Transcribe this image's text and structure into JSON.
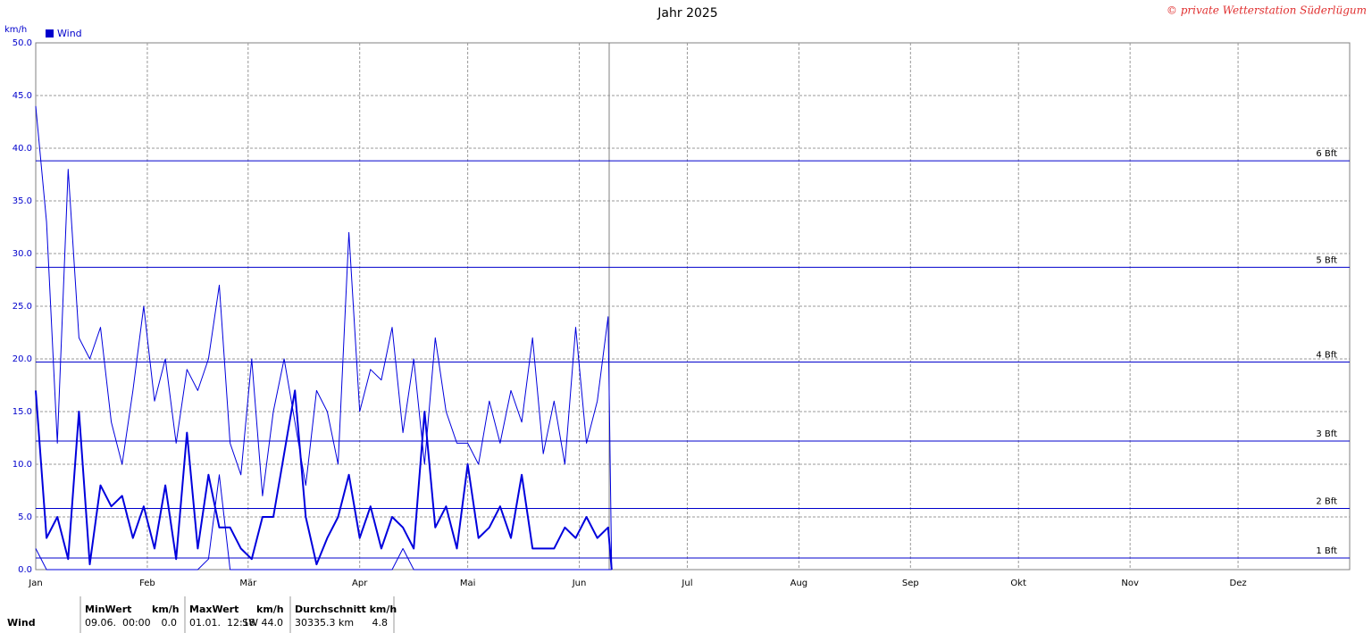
{
  "chart_data": {
    "type": "line",
    "title": "Jahr 2025",
    "credit": "© private Wetterstation Süderlügum",
    "y_label": "km/h",
    "xlim": [
      0,
      365
    ],
    "xticks": [
      {
        "value": 0,
        "label": "Jan"
      },
      {
        "value": 31,
        "label": "Feb"
      },
      {
        "value": 59,
        "label": "Mär"
      },
      {
        "value": 90,
        "label": "Apr"
      },
      {
        "value": 120,
        "label": "Mai"
      },
      {
        "value": 151,
        "label": "Jun"
      },
      {
        "value": 181,
        "label": "Jul"
      },
      {
        "value": 212,
        "label": "Aug"
      },
      {
        "value": 243,
        "label": "Sep"
      },
      {
        "value": 273,
        "label": "Okt"
      },
      {
        "value": 304,
        "label": "Nov"
      },
      {
        "value": 334,
        "label": "Dez"
      }
    ],
    "ylim": [
      0,
      50
    ],
    "yticks": [
      {
        "value": 0,
        "label": "0.0"
      },
      {
        "value": 5,
        "label": "5.0"
      },
      {
        "value": 10,
        "label": "10.0"
      },
      {
        "value": 15,
        "label": "15.0"
      },
      {
        "value": 20,
        "label": "20.0"
      },
      {
        "value": 25,
        "label": "25.0"
      },
      {
        "value": 30,
        "label": "30.0"
      },
      {
        "value": 35,
        "label": "35.0"
      },
      {
        "value": 40,
        "label": "40.0"
      },
      {
        "value": 45,
        "label": "45.0"
      },
      {
        "value": 50,
        "label": "50.0"
      }
    ],
    "grid": true,
    "reference_lines": [
      {
        "value": 1.1,
        "label": "1 Bft"
      },
      {
        "value": 5.8,
        "label": "2 Bft"
      },
      {
        "value": 12.2,
        "label": "3 Bft"
      },
      {
        "value": 19.7,
        "label": "4 Bft"
      },
      {
        "value": 28.7,
        "label": "5 Bft"
      },
      {
        "value": 38.8,
        "label": "6 Bft"
      }
    ],
    "x": [
      0,
      3,
      6,
      9,
      12,
      15,
      18,
      21,
      24,
      27,
      30,
      33,
      36,
      39,
      42,
      45,
      48,
      51,
      54,
      57,
      60,
      63,
      66,
      69,
      72,
      75,
      78,
      81,
      84,
      87,
      90,
      93,
      96,
      99,
      102,
      105,
      108,
      111,
      114,
      117,
      120,
      123,
      126,
      129,
      132,
      135,
      138,
      141,
      144,
      147,
      150,
      153,
      156,
      159,
      160
    ],
    "series": [
      {
        "name": "Wind",
        "color": "#0000dd",
        "width": 2,
        "values": [
          17,
          3,
          5,
          1,
          15,
          0.5,
          8,
          6,
          7,
          3,
          6,
          2,
          8,
          1,
          13,
          2,
          9,
          4,
          4,
          2,
          1,
          5,
          5,
          11,
          17,
          5,
          0.5,
          3,
          5,
          9,
          3,
          6,
          2,
          5,
          4,
          2,
          15,
          4,
          6,
          2,
          10,
          3,
          4,
          6,
          3,
          9,
          2,
          2,
          2,
          4,
          3,
          5,
          3,
          4,
          0
        ]
      },
      {
        "color": "#0000dd",
        "width": 1,
        "values": [
          44,
          33,
          12,
          38,
          22,
          20,
          23,
          14,
          10,
          17,
          25,
          16,
          20,
          12,
          19,
          17,
          20,
          27,
          12,
          9,
          20,
          7,
          15,
          20,
          14,
          8,
          17,
          15,
          10,
          32,
          15,
          19,
          18,
          23,
          13,
          20,
          10,
          22,
          15,
          12,
          12,
          10,
          16,
          12,
          17,
          14,
          22,
          11,
          16,
          10,
          23,
          12,
          16,
          24,
          0
        ]
      },
      {
        "color": "#0000dd",
        "width": 1,
        "values": [
          2,
          0,
          0,
          0,
          0,
          0,
          0,
          0,
          0,
          0,
          0,
          0,
          0,
          0,
          0,
          0,
          1,
          9,
          0,
          0,
          0,
          0,
          0,
          0,
          0,
          0,
          0,
          0,
          0,
          0,
          0,
          0,
          0,
          0,
          2,
          0,
          0,
          0,
          0,
          0,
          0,
          0,
          0,
          0,
          0,
          0,
          0,
          0,
          0,
          0,
          0,
          0,
          0,
          0,
          0
        ]
      }
    ],
    "legend": "top-left",
    "stats": {
      "row_label": "Wind",
      "min": {
        "header": "MinWert",
        "unit": "km/h",
        "time": "09.06.  00:00",
        "value": "0.0"
      },
      "max": {
        "header": "MaxWert",
        "unit": "km/h",
        "time": "01.01.  12:18",
        "value": "SW 44.0"
      },
      "avg": {
        "header": "Durchschnitt km/h",
        "distance": "30335.3 km",
        "value": "4.8"
      }
    }
  }
}
